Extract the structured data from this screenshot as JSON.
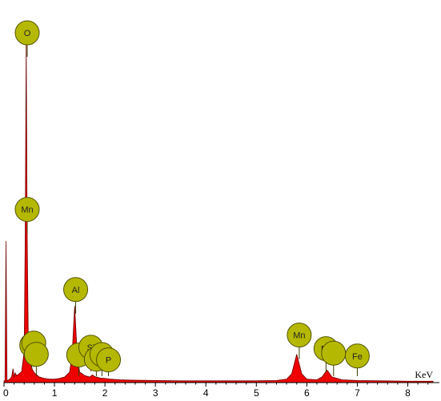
{
  "chart_data": {
    "type": "area",
    "title": "",
    "xlabel": "KeV",
    "ylabel": "",
    "xlim": [
      0,
      8.5
    ],
    "ylim": [
      0,
      100
    ],
    "x_ticks": [
      0,
      1,
      2,
      3,
      4,
      5,
      6,
      7,
      8
    ],
    "grid": false,
    "series": [
      {
        "fill_color": "#ee0000",
        "line_color": "#6b0000",
        "x": [
          0.0,
          0.02,
          0.04,
          0.06,
          0.08,
          0.1,
          0.15,
          0.18,
          0.2,
          0.22,
          0.25,
          0.3,
          0.35,
          0.4,
          0.42,
          0.44,
          0.46,
          0.48,
          0.5,
          0.52,
          0.54,
          0.56,
          0.6,
          0.7,
          0.8,
          0.9,
          1.0,
          1.1,
          1.2,
          1.3,
          1.35,
          1.4,
          1.45,
          1.5,
          1.6,
          1.7,
          1.75,
          1.8,
          1.9,
          2.0,
          2.1,
          2.3,
          2.5,
          3.0,
          3.5,
          4.0,
          4.5,
          5.0,
          5.4,
          5.6,
          5.7,
          5.8,
          5.9,
          6.0,
          6.2,
          6.3,
          6.4,
          6.5,
          6.7,
          7.0,
          7.5,
          8.0,
          8.5
        ],
        "y": [
          0.5,
          0.5,
          40.5,
          0.5,
          0.7,
          0.8,
          1.6,
          4.0,
          1.5,
          2.8,
          2.0,
          2.5,
          3.2,
          9.0,
          41.0,
          97.3,
          41.0,
          14.0,
          9.0,
          6.5,
          4.8,
          3.8,
          2.8,
          1.6,
          1.2,
          1.0,
          1.0,
          1.2,
          1.6,
          3.0,
          8.0,
          21.9,
          8.0,
          3.0,
          2.0,
          1.6,
          2.2,
          1.7,
          1.3,
          1.2,
          1.0,
          0.8,
          0.7,
          0.6,
          0.5,
          0.5,
          0.5,
          0.5,
          0.6,
          1.0,
          2.5,
          8.1,
          2.5,
          1.0,
          0.8,
          1.6,
          3.6,
          1.6,
          0.8,
          0.6,
          0.5,
          0.4,
          0.4
        ]
      }
    ],
    "annotations": [
      {
        "label": "O",
        "x": 0.46,
        "y": 100.0
      },
      {
        "label": "Mn",
        "x": 0.46,
        "y": 49.5
      },
      {
        "label": "Al",
        "x": 1.42,
        "y": 26.6
      },
      {
        "label": "Fe",
        "x": 0.55,
        "y": 10.7
      },
      {
        "label": "",
        "x": 0.59,
        "y": 11.3
      },
      {
        "label": "",
        "x": 0.64,
        "y": 8.1
      },
      {
        "label": "",
        "x": 1.48,
        "y": 7.9
      },
      {
        "label": "Si",
        "x": 1.72,
        "y": 10.1
      },
      {
        "label": "",
        "x": 1.83,
        "y": 6.7
      },
      {
        "label": "",
        "x": 1.94,
        "y": 8.0
      },
      {
        "label": "P",
        "x": 2.07,
        "y": 6.5
      },
      {
        "label": "Mn",
        "x": 5.85,
        "y": 13.6
      },
      {
        "label": "Fe",
        "x": 6.38,
        "y": 9.7
      },
      {
        "label": "",
        "x": 6.53,
        "y": 8.4
      },
      {
        "label": "Fe",
        "x": 7.0,
        "y": 7.6
      }
    ],
    "marker_fill": "#b5b800",
    "marker_stroke": "#545400"
  }
}
